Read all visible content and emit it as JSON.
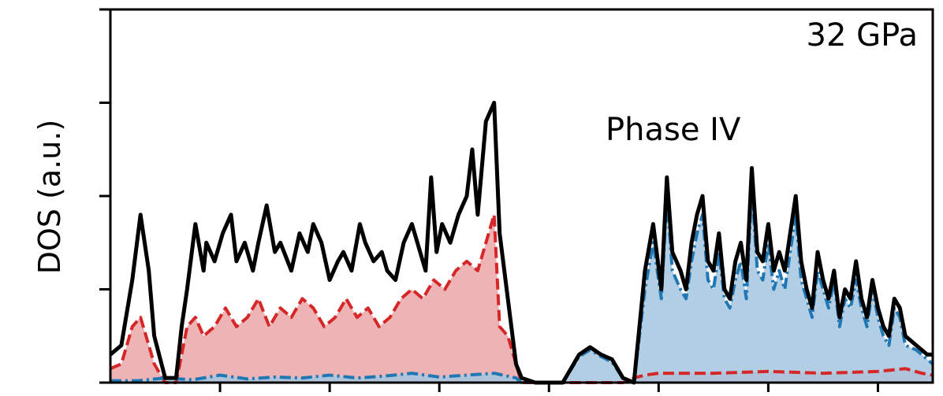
{
  "chart_data": {
    "type": "area",
    "title": "",
    "xlabel": "",
    "ylabel": "DOS (a.u.)",
    "annotations": {
      "pressure": "32 GPa",
      "phase": "Phase IV"
    },
    "xlim": [
      -20,
      10
    ],
    "ylim": [
      0,
      4
    ],
    "yticks": [
      0,
      1,
      2,
      3,
      4
    ],
    "xticks": [
      -16,
      -12,
      -8,
      -4,
      0,
      4,
      8
    ],
    "grid": false,
    "legend": "none",
    "colors": {
      "total": "#000000",
      "red": "#d62728",
      "red_fill": "#eba6a7",
      "blue": "#1f77b4",
      "blue_fill": "#a3c6e1"
    },
    "series": [
      {
        "style": "solid",
        "color": "#000000",
        "x": [
          -20.0,
          -19.6,
          -19.2,
          -18.9,
          -18.6,
          -18.4,
          -18.0,
          -17.6,
          -17.4,
          -17.2,
          -16.9,
          -16.6,
          -16.5,
          -16.2,
          -15.9,
          -15.6,
          -15.4,
          -15.1,
          -14.8,
          -14.6,
          -14.3,
          -14.0,
          -13.8,
          -13.4,
          -13.1,
          -12.8,
          -12.6,
          -12.3,
          -12.0,
          -11.7,
          -11.5,
          -11.2,
          -10.9,
          -10.7,
          -10.4,
          -10.1,
          -9.9,
          -9.6,
          -9.3,
          -9.0,
          -8.8,
          -8.5,
          -8.3,
          -8.1,
          -7.9,
          -7.6,
          -7.3,
          -7.0,
          -6.8,
          -6.6,
          -6.3,
          -6.0,
          -5.8,
          -5.5,
          -5.2,
          -5.0,
          -4.5,
          -4.0,
          -3.5,
          -2.9,
          -2.5,
          -2.1,
          -1.7,
          -1.3,
          -0.9,
          -0.5,
          -0.2,
          0.1,
          0.3,
          0.5,
          0.8,
          1.0,
          1.2,
          1.4,
          1.6,
          1.8,
          2.0,
          2.2,
          2.4,
          2.6,
          2.8,
          3.0,
          3.2,
          3.4,
          3.6,
          3.8,
          4.0,
          4.2,
          4.4,
          4.6,
          4.8,
          5.0,
          5.2,
          5.4,
          5.6,
          5.8,
          6.0,
          6.2,
          6.4,
          6.6,
          6.8,
          7.0,
          7.2,
          7.4,
          7.6,
          7.8,
          8.0,
          8.2,
          8.4,
          8.6,
          8.8,
          9.0,
          9.4,
          9.8,
          10.0
        ],
        "y": [
          0.3,
          0.4,
          1.1,
          1.8,
          1.2,
          0.5,
          0.05,
          0.05,
          0.6,
          1.0,
          1.7,
          1.2,
          1.5,
          1.3,
          1.6,
          1.8,
          1.3,
          1.5,
          1.2,
          1.5,
          1.9,
          1.4,
          1.5,
          1.2,
          1.6,
          1.4,
          1.7,
          1.5,
          1.1,
          1.3,
          1.4,
          1.2,
          1.7,
          1.5,
          1.3,
          1.4,
          1.2,
          1.1,
          1.5,
          1.7,
          1.5,
          1.2,
          2.2,
          1.4,
          1.7,
          1.5,
          1.8,
          2.0,
          2.5,
          1.8,
          2.8,
          3.0,
          1.6,
          0.9,
          0.2,
          0.05,
          0.0,
          0.0,
          0.0,
          0.3,
          0.38,
          0.3,
          0.25,
          0.05,
          0.0,
          1.2,
          1.7,
          1.0,
          2.2,
          1.4,
          1.2,
          1.0,
          1.5,
          1.8,
          2.0,
          1.3,
          1.2,
          1.6,
          1.0,
          0.9,
          1.3,
          1.5,
          1.1,
          2.3,
          1.4,
          1.3,
          1.7,
          1.2,
          1.4,
          1.2,
          1.6,
          2.0,
          1.3,
          1.0,
          0.8,
          1.4,
          1.1,
          0.9,
          1.2,
          0.7,
          1.0,
          0.9,
          1.3,
          0.9,
          0.7,
          1.1,
          0.8,
          0.6,
          0.5,
          0.9,
          0.8,
          0.5,
          0.4,
          0.3,
          0.3
        ]
      },
      {
        "style": "dashed",
        "color": "#d62728",
        "fill": "#eba6a7",
        "x": [
          -20.0,
          -19.6,
          -19.2,
          -18.9,
          -18.6,
          -18.4,
          -18.0,
          -17.6,
          -17.4,
          -17.2,
          -16.9,
          -16.6,
          -16.2,
          -15.8,
          -15.4,
          -15.0,
          -14.6,
          -14.2,
          -13.8,
          -13.4,
          -13.0,
          -12.6,
          -12.2,
          -11.8,
          -11.4,
          -11.0,
          -10.6,
          -10.2,
          -9.8,
          -9.4,
          -9.0,
          -8.6,
          -8.2,
          -7.8,
          -7.4,
          -7.0,
          -6.6,
          -6.3,
          -6.0,
          -5.8,
          -5.5,
          -5.2,
          -5.0,
          -4.5,
          -4.0,
          -3.5,
          -2.9,
          -2.5,
          -2.1,
          -1.7,
          -1.3,
          -0.9,
          -0.5,
          0.0,
          2.0,
          4.0,
          6.0,
          8.0,
          9.0,
          9.6,
          10.0
        ],
        "y": [
          0.15,
          0.2,
          0.6,
          0.7,
          0.4,
          0.2,
          0.0,
          0.0,
          0.3,
          0.6,
          0.7,
          0.5,
          0.6,
          0.8,
          0.6,
          0.7,
          0.9,
          0.6,
          0.8,
          0.7,
          0.9,
          0.8,
          0.6,
          0.7,
          0.9,
          0.7,
          0.8,
          0.6,
          0.7,
          0.9,
          1.0,
          0.9,
          1.1,
          1.0,
          1.2,
          1.3,
          1.2,
          1.5,
          1.8,
          0.6,
          0.5,
          0.2,
          0.0,
          0.0,
          0.0,
          0.0,
          0.0,
          0.0,
          0.0,
          0.0,
          0.0,
          0.05,
          0.08,
          0.1,
          0.1,
          0.12,
          0.1,
          0.12,
          0.15,
          0.1,
          0.08
        ]
      },
      {
        "style": "dashdot",
        "color": "#1f77b4",
        "fill": "#a3c6e1",
        "x": [
          -20.0,
          -19.0,
          -18.0,
          -17.0,
          -16.0,
          -15.0,
          -14.0,
          -13.0,
          -12.0,
          -11.0,
          -10.0,
          -9.0,
          -8.0,
          -7.0,
          -6.0,
          -5.2,
          -5.0,
          -4.5,
          -4.0,
          -3.5,
          -2.9,
          -2.5,
          -2.1,
          -1.7,
          -1.3,
          -0.9,
          -0.5,
          -0.2,
          0.1,
          0.3,
          0.5,
          0.8,
          1.0,
          1.2,
          1.4,
          1.6,
          1.8,
          2.0,
          2.2,
          2.4,
          2.6,
          2.8,
          3.0,
          3.2,
          3.4,
          3.6,
          3.8,
          4.0,
          4.2,
          4.4,
          4.6,
          4.8,
          5.0,
          5.2,
          5.4,
          5.6,
          5.8,
          6.0,
          6.2,
          6.4,
          6.6,
          6.8,
          7.0,
          7.2,
          7.4,
          7.6,
          7.8,
          8.0,
          8.2,
          8.4,
          8.6,
          8.8,
          9.0,
          9.4,
          9.8,
          10.0
        ],
        "y": [
          0.02,
          0.02,
          0.05,
          0.03,
          0.08,
          0.04,
          0.06,
          0.05,
          0.08,
          0.05,
          0.07,
          0.1,
          0.06,
          0.08,
          0.1,
          0.05,
          0.0,
          0.0,
          0.0,
          0.0,
          0.28,
          0.35,
          0.28,
          0.22,
          0.05,
          0.0,
          1.0,
          1.5,
          0.9,
          2.0,
          1.2,
          1.0,
          0.9,
          1.3,
          1.6,
          1.8,
          1.1,
          1.0,
          1.4,
          0.9,
          0.8,
          1.1,
          1.3,
          0.9,
          2.1,
          1.2,
          1.1,
          1.5,
          1.0,
          1.2,
          1.0,
          1.4,
          1.8,
          1.1,
          0.9,
          0.7,
          1.2,
          1.0,
          0.8,
          1.1,
          0.6,
          0.9,
          0.8,
          1.1,
          0.8,
          0.6,
          1.0,
          0.7,
          0.5,
          0.4,
          0.8,
          0.7,
          0.4,
          0.35,
          0.25,
          0.2
        ]
      }
    ]
  }
}
